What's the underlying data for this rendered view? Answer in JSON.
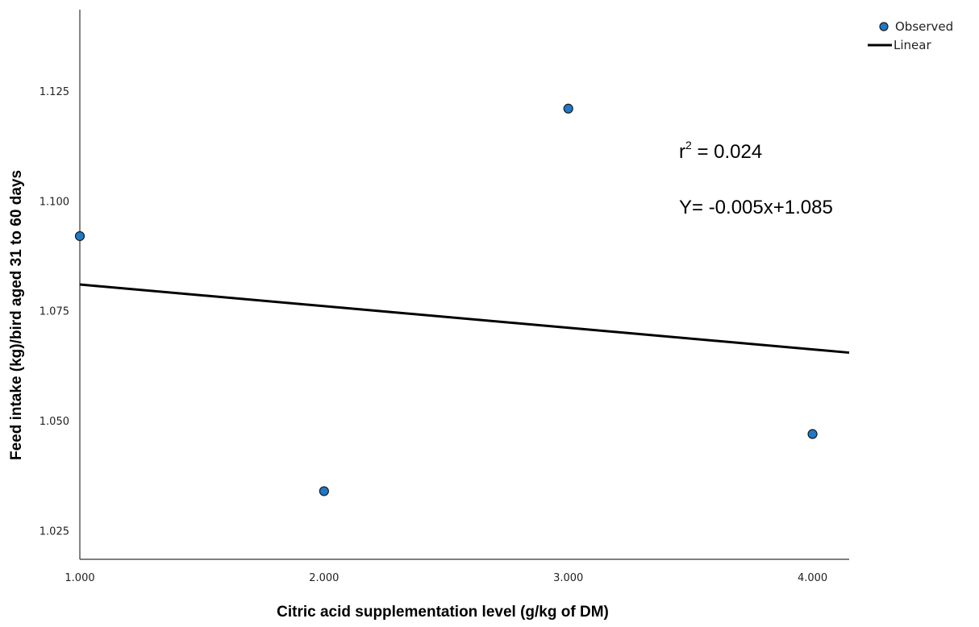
{
  "chart_data": {
    "type": "scatter",
    "xlabel": "Citric acid supplementation level (g/kg of DM)",
    "ylabel": "Feed intake (kg)/bird aged 31 to 60 days",
    "x_ticks": [
      "1.000",
      "2.000",
      "3.000",
      "4.000"
    ],
    "y_ticks": [
      "1.025",
      "1.050",
      "1.075",
      "1.100",
      "1.125"
    ],
    "xlim": [
      1.0,
      4.15
    ],
    "ylim": [
      1.0185,
      1.1435
    ],
    "grid": false,
    "legend_position": "top-right",
    "series": [
      {
        "name": "Observed",
        "kind": "points",
        "color": "#1f78c8",
        "points": [
          {
            "x": 1.0,
            "y": 1.092
          },
          {
            "x": 2.0,
            "y": 1.034
          },
          {
            "x": 3.0,
            "y": 1.121
          },
          {
            "x": 4.0,
            "y": 1.047
          }
        ]
      },
      {
        "name": "Linear",
        "kind": "line",
        "color": "#000000",
        "points": [
          {
            "x": 1.0,
            "y": 1.081
          },
          {
            "x": 4.15,
            "y": 1.0655
          }
        ]
      }
    ],
    "annotations": {
      "r2_prefix": "r",
      "r2_exp": "2",
      "r2_value": " = 0.024",
      "equation": "Y= -0.005x+1.085"
    }
  }
}
